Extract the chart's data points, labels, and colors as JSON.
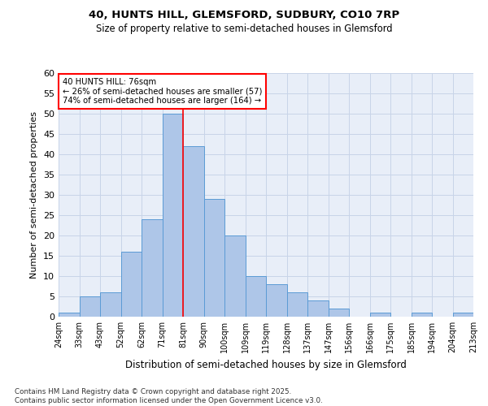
{
  "title1": "40, HUNTS HILL, GLEMSFORD, SUDBURY, CO10 7RP",
  "title2": "Size of property relative to semi-detached houses in Glemsford",
  "xlabel": "Distribution of semi-detached houses by size in Glemsford",
  "ylabel": "Number of semi-detached properties",
  "footnote": "Contains HM Land Registry data © Crown copyright and database right 2025.\nContains public sector information licensed under the Open Government Licence v3.0.",
  "bin_labels": [
    "24sqm",
    "33sqm",
    "43sqm",
    "52sqm",
    "62sqm",
    "71sqm",
    "81sqm",
    "90sqm",
    "100sqm",
    "109sqm",
    "119sqm",
    "128sqm",
    "137sqm",
    "147sqm",
    "156sqm",
    "166sqm",
    "175sqm",
    "185sqm",
    "194sqm",
    "204sqm",
    "213sqm"
  ],
  "bar_heights": [
    1,
    5,
    6,
    16,
    24,
    50,
    42,
    29,
    20,
    10,
    8,
    6,
    4,
    2,
    0,
    1,
    0,
    1,
    0,
    1
  ],
  "bar_color": "#aec6e8",
  "bar_edge_color": "#5b9bd5",
  "grid_color": "#c8d4e8",
  "background_color": "#e8eef8",
  "vline_x": 5.5,
  "vline_color": "red",
  "annotation_text": "40 HUNTS HILL: 76sqm\n← 26% of semi-detached houses are smaller (57)\n74% of semi-detached houses are larger (164) →",
  "annotation_box_facecolor": "white",
  "annotation_box_edgecolor": "red",
  "ylim": [
    0,
    60
  ],
  "yticks": [
    0,
    5,
    10,
    15,
    20,
    25,
    30,
    35,
    40,
    45,
    50,
    55,
    60
  ]
}
